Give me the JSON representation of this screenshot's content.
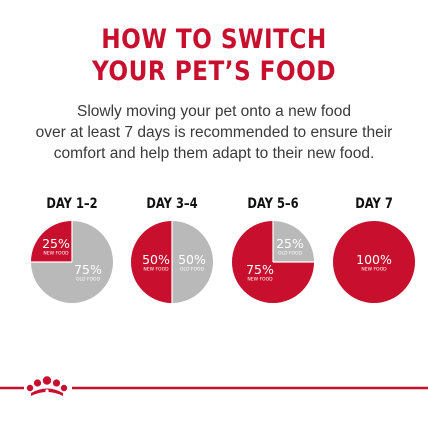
{
  "title_lines": [
    "HOW TO SWITCH",
    "YOUR PET’S FOOD"
  ],
  "description_lines": [
    "Slowly moving your pet onto a new food",
    "over at least 7 days is recommended to ensure their",
    "comfort and help them adapt to their new food."
  ],
  "colors": {
    "red": "#c8102e",
    "grey": "#b9b9b9",
    "divider": "#c8102e"
  },
  "days": [
    {
      "label": "DAY 1–2",
      "new_percent": 25,
      "new_text": "25%",
      "new_sub": "NEW FOOD",
      "old_text": "75%",
      "old_sub": "OLD FOOD"
    },
    {
      "label": "DAY 3–4",
      "new_percent": 50,
      "new_text": "50%",
      "new_sub": "NEW FOOD",
      "old_text": "50%",
      "old_sub": "OLD FOOD"
    },
    {
      "label": "DAY 5–6",
      "new_percent": 75,
      "new_text": "75%",
      "new_sub": "NEW FOOD",
      "old_text": "25%",
      "old_sub": "OLD FOOD"
    },
    {
      "label": "DAY 7",
      "new_percent": 100,
      "new_text": "100%",
      "new_sub": "NEW FOOD"
    }
  ],
  "logo_icon": "royal-canin-crown-icon"
}
